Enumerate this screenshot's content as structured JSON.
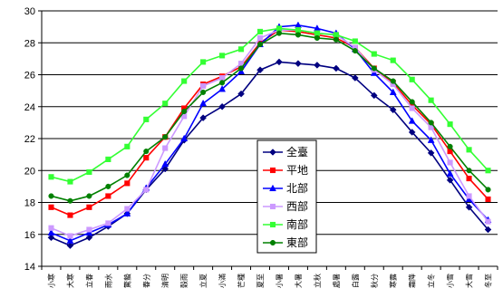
{
  "chart_data": {
    "type": "line",
    "title": "",
    "xlabel": "",
    "ylabel": "",
    "ylim": [
      14,
      30
    ],
    "yticks": [
      14,
      16,
      18,
      20,
      22,
      24,
      26,
      28,
      30
    ],
    "grid": "horizontal",
    "legend_position": "center-right",
    "categories": [
      "小寒",
      "大寒",
      "立春",
      "雨水",
      "驚蟄",
      "春分",
      "清明",
      "穀雨",
      "立夏",
      "小滿",
      "芒種",
      "夏至",
      "小暑",
      "大暑",
      "立秋",
      "處暑",
      "白露",
      "秋分",
      "寒露",
      "霜降",
      "立冬",
      "小雪",
      "大雪",
      "冬至"
    ],
    "series": [
      {
        "name": "全臺",
        "color": "#000080",
        "marker": "diamond",
        "values": [
          15.8,
          15.3,
          15.8,
          16.5,
          17.3,
          18.8,
          20.1,
          21.9,
          23.3,
          24.0,
          24.8,
          26.3,
          26.8,
          26.7,
          26.6,
          26.4,
          25.8,
          24.7,
          23.8,
          22.4,
          21.1,
          19.4,
          17.7,
          16.3
        ]
      },
      {
        "name": "平地",
        "color": "#ff0000",
        "marker": "square",
        "values": [
          17.7,
          17.2,
          17.7,
          18.4,
          19.2,
          20.8,
          22.1,
          23.9,
          25.4,
          25.9,
          26.5,
          28.0,
          28.8,
          28.7,
          28.5,
          28.3,
          27.7,
          26.4,
          25.5,
          24.1,
          22.9,
          21.2,
          19.5,
          18.2
        ]
      },
      {
        "name": "北部",
        "color": "#0000ff",
        "marker": "triangle",
        "values": [
          16.1,
          15.6,
          16.1,
          16.6,
          17.3,
          18.9,
          20.4,
          22.0,
          24.2,
          25.1,
          26.2,
          27.9,
          29.0,
          29.1,
          28.9,
          28.6,
          27.6,
          26.1,
          24.9,
          23.1,
          21.9,
          19.8,
          18.2,
          16.9
        ]
      },
      {
        "name": "西部",
        "color": "#cc99ff",
        "marker": "square",
        "values": [
          16.4,
          15.9,
          16.3,
          16.7,
          17.6,
          18.8,
          21.4,
          23.4,
          25.3,
          25.8,
          26.7,
          28.3,
          28.8,
          28.8,
          28.6,
          28.5,
          27.7,
          26.3,
          25.4,
          23.9,
          22.7,
          20.5,
          18.4,
          16.8
        ]
      },
      {
        "name": "南部",
        "color": "#33ff33",
        "marker": "square",
        "values": [
          19.6,
          19.3,
          19.9,
          20.7,
          21.5,
          23.2,
          24.2,
          25.6,
          26.8,
          27.2,
          27.6,
          28.7,
          28.9,
          28.8,
          28.6,
          28.5,
          28.1,
          27.3,
          26.9,
          25.7,
          24.4,
          22.9,
          21.3,
          20.0
        ]
      },
      {
        "name": "東部",
        "color": "#008000",
        "marker": "circle",
        "values": [
          18.4,
          18.1,
          18.4,
          19.0,
          19.7,
          21.2,
          22.1,
          23.7,
          24.9,
          25.5,
          26.4,
          27.9,
          28.6,
          28.5,
          28.3,
          28.2,
          27.5,
          26.4,
          25.6,
          24.3,
          23.0,
          21.5,
          20.0,
          18.8
        ]
      }
    ]
  }
}
